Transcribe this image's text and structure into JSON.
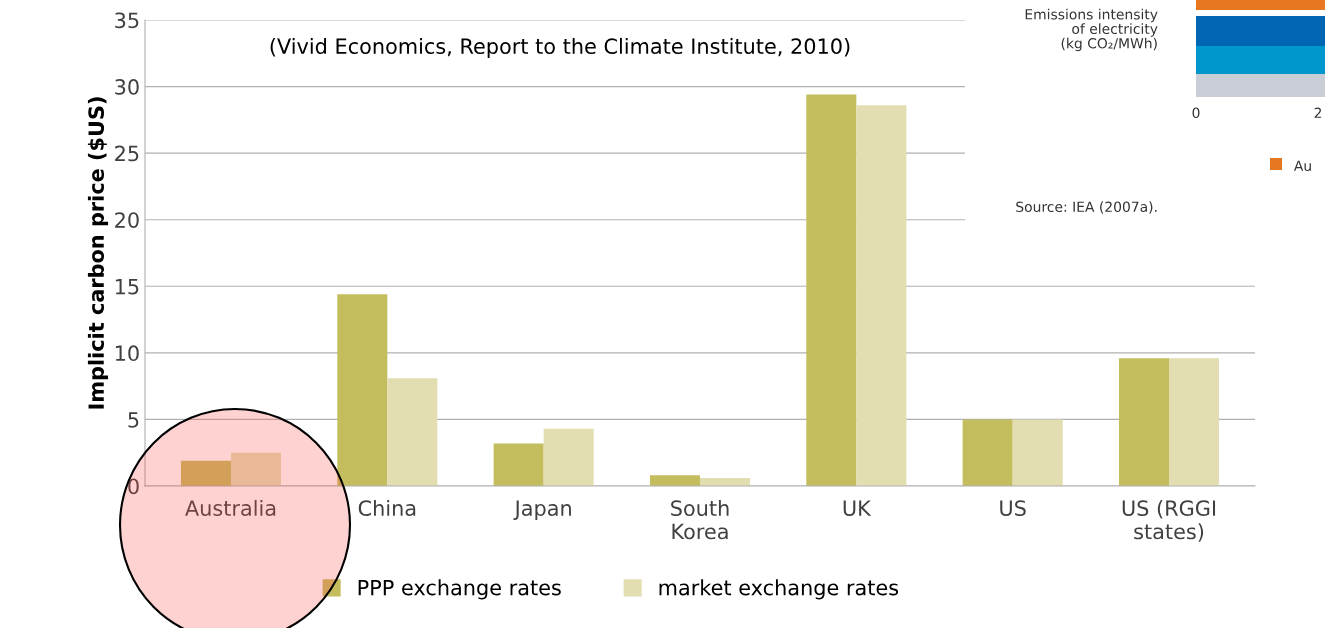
{
  "chart_data": {
    "type": "bar",
    "ylabel": "Implicit carbon price ($US)",
    "categories": [
      "Australia",
      "China",
      "Japan",
      "South\nKorea",
      "UK",
      "US",
      "US (RGGI\nstates)"
    ],
    "series": [
      {
        "name": "PPP exchange rates",
        "color": "#c4bd5e",
        "values": [
          1.9,
          14.4,
          3.2,
          0.8,
          29.4,
          5.0,
          9.6
        ]
      },
      {
        "name": "market exchange rates",
        "color": "#e3deb1",
        "values": [
          2.5,
          8.1,
          4.3,
          0.6,
          28.6,
          5.0,
          9.6
        ]
      }
    ],
    "ylim": [
      0,
      35
    ],
    "yticks": [
      0,
      5,
      10,
      15,
      20,
      25,
      30,
      35
    ],
    "grid": "y",
    "legend": "bottom",
    "annotations": [
      "(Vivid Economics, Report to the Climate Institute, 2010)",
      "Emissions intensity\nof electricity\n(kg CO₂/MWh)",
      "0",
      "2",
      "Au",
      "Source: IEA (2007a)."
    ]
  }
}
